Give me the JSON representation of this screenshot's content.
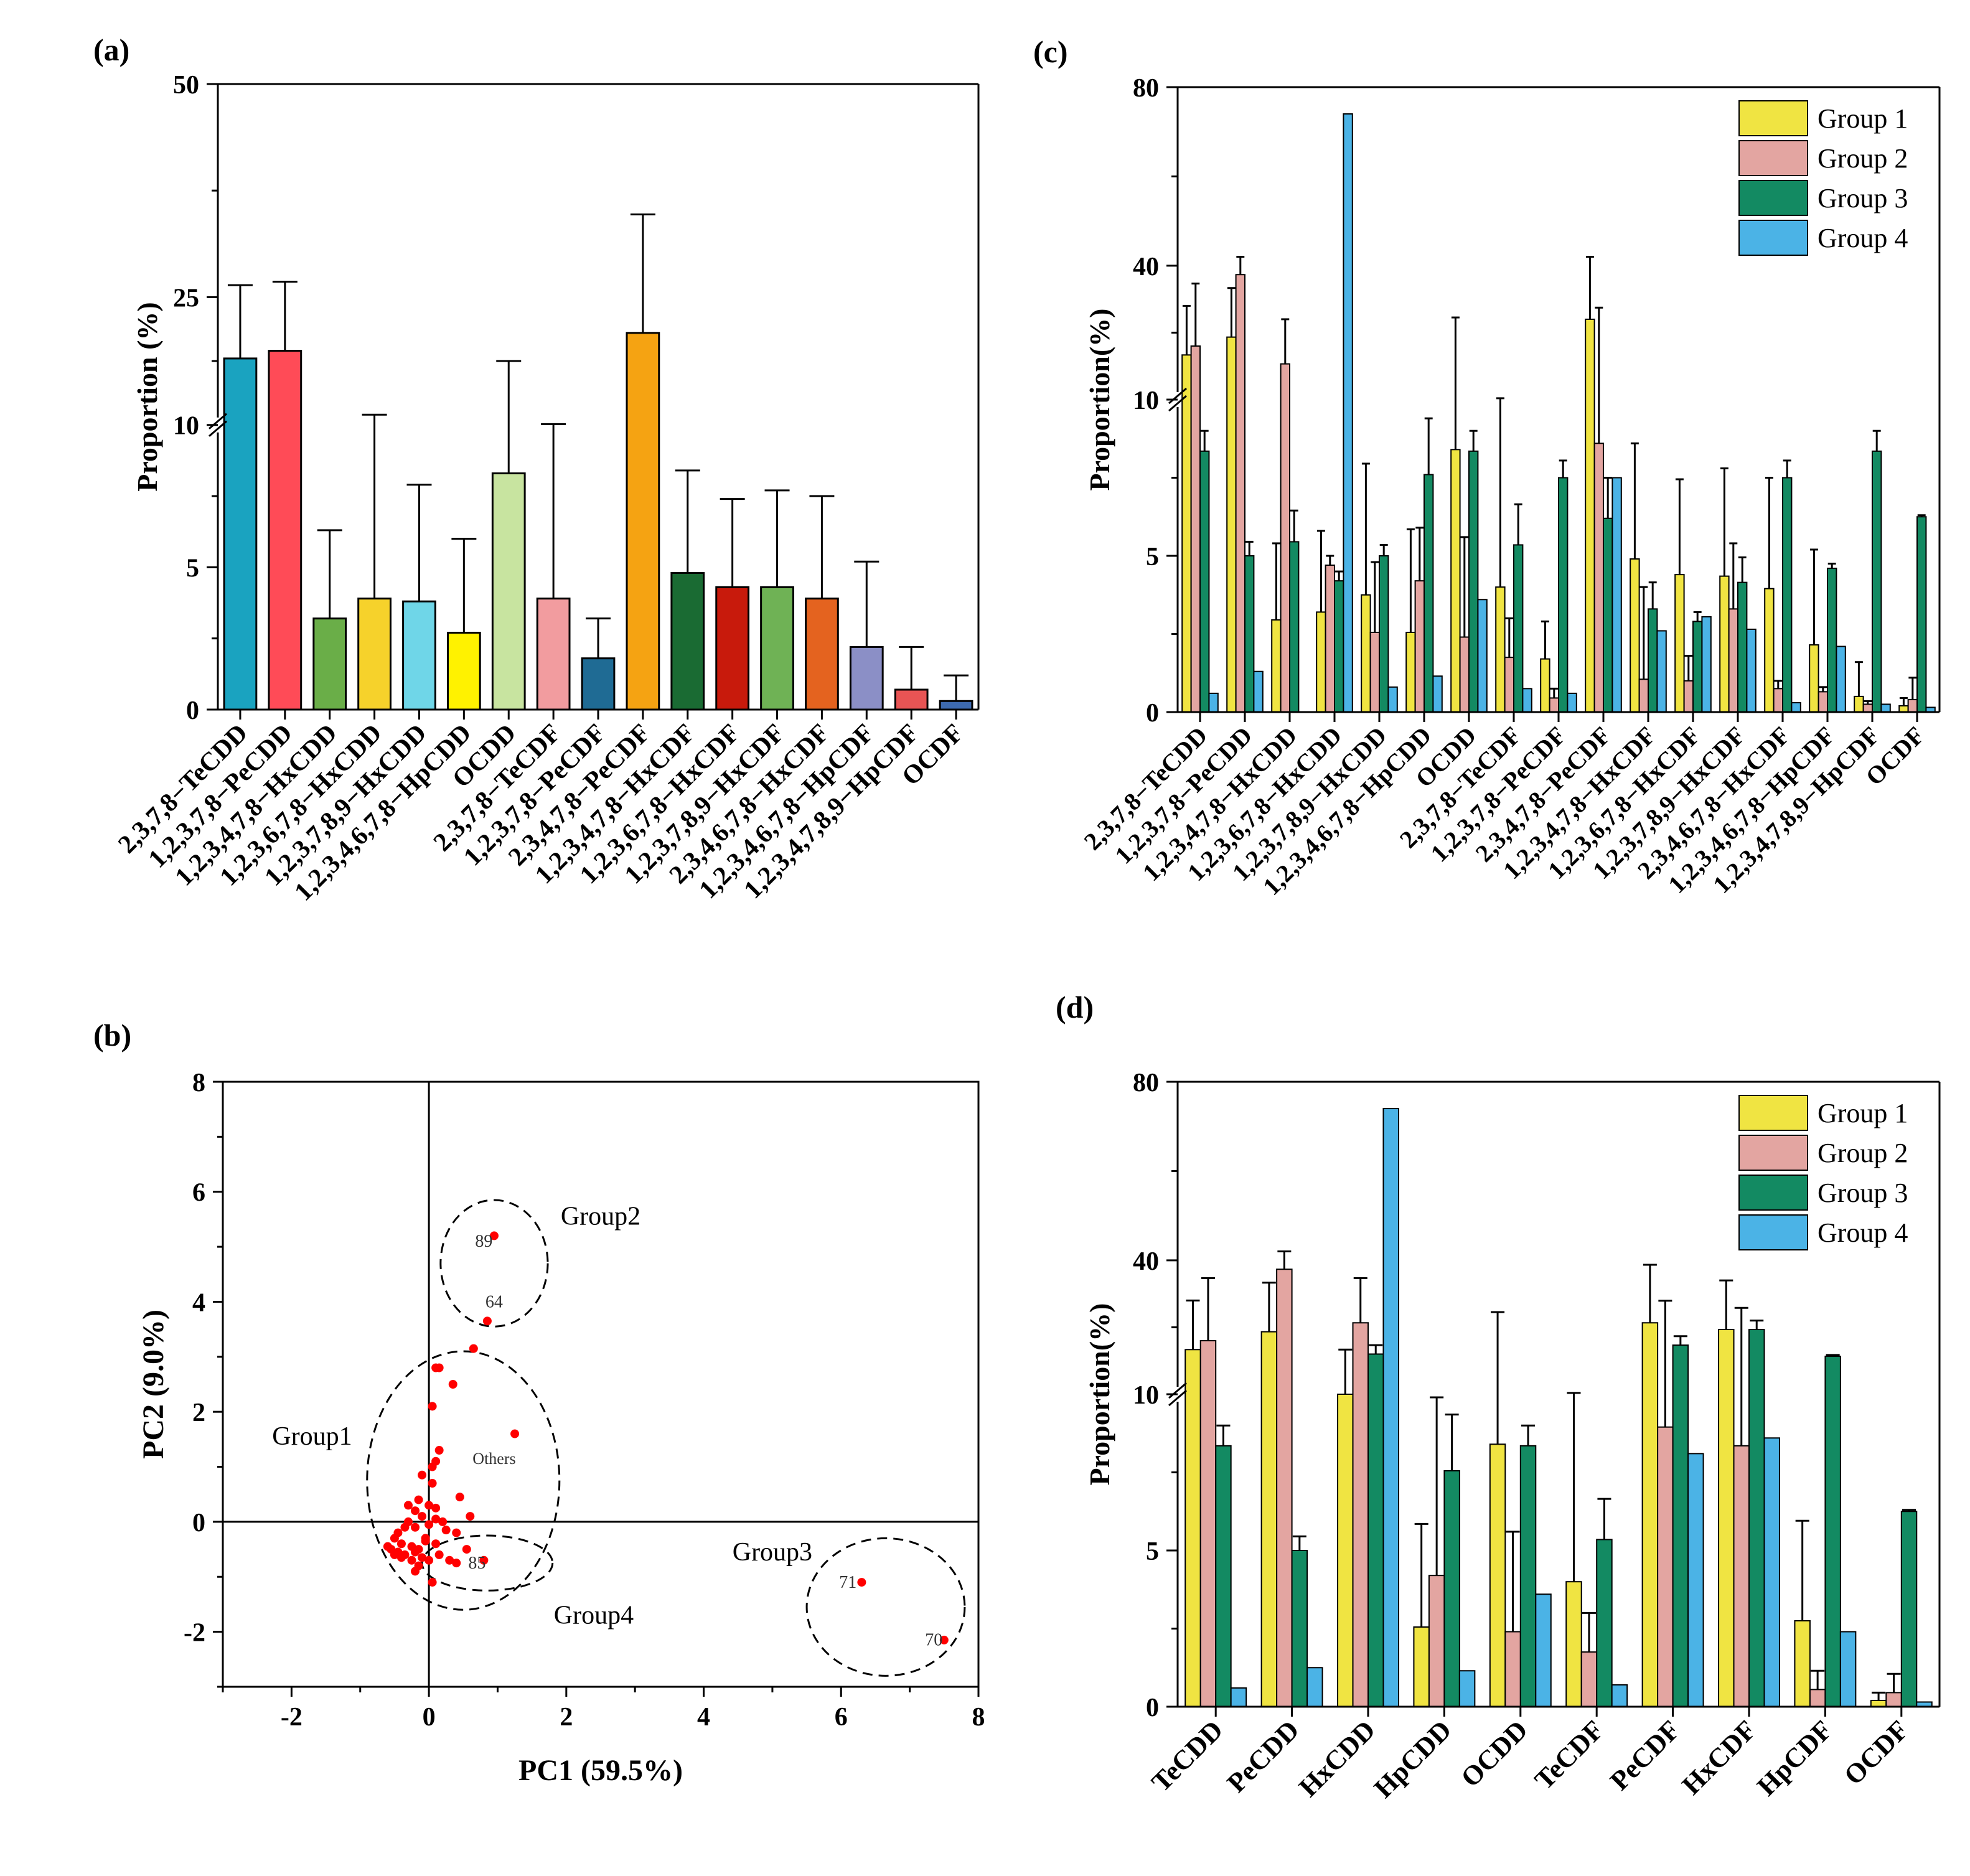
{
  "chart_data": [
    {
      "panel": "(a)",
      "type": "bar",
      "ylabel": "Proportion (%)",
      "y_break": {
        "lower_range": [
          0,
          10
        ],
        "upper_range": [
          10,
          50
        ]
      },
      "yticks": [
        0,
        5,
        10,
        25,
        50
      ],
      "categories": [
        "2,3,7,8−TeCDD",
        "1,2,3,7,8−PeCDD",
        "1,2,3,4,7,8−HxCDD",
        "1,2,3,6,7,8−HxCDD",
        "1,2,3,7,8,9−HxCDD",
        "1,2,3,4,6,7,8−HpCDD",
        "OCDD",
        "2,3,7,8−TeCDF",
        "1,2,3,7,8−PeCDF",
        "2,3,4,7,8−PeCDF",
        "1,2,3,4,7,8−HxCDF",
        "1,2,3,6,7,8−HxCDF",
        "1,2,3,7,8,9−HxCDF",
        "2,3,4,6,7,8−HxCDF",
        "1,2,3,4,6,7,8−HpCDF",
        "1,2,3,4,7,8,9−HpCDF",
        "OCDF"
      ],
      "values": [
        17.8,
        18.7,
        3.2,
        3.9,
        3.8,
        2.7,
        8.3,
        3.9,
        1.8,
        20.8,
        4.8,
        4.3,
        4.3,
        3.9,
        2.2,
        0.7,
        0.3
      ],
      "errors": [
        8.6,
        8.1,
        3.1,
        7.3,
        4.1,
        3.3,
        9.2,
        6.2,
        1.4,
        13.9,
        3.6,
        3.1,
        3.4,
        3.6,
        3.0,
        1.5,
        0.9
      ],
      "colors": [
        "#1aa3c0",
        "#ff4b57",
        "#6aae48",
        "#f6d22b",
        "#6fd6e8",
        "#fff200",
        "#c8e4a0",
        "#f29c9f",
        "#1f6b94",
        "#f5a312",
        "#1a6b33",
        "#c81a0c",
        "#6fb255",
        "#e4631f",
        "#8b8fc6",
        "#e85454",
        "#3d6ab0"
      ]
    },
    {
      "panel": "(c)",
      "type": "bar",
      "ylabel": "Proportion(%)",
      "y_break": {
        "lower_range": [
          0,
          10
        ],
        "upper_range": [
          10,
          80
        ]
      },
      "yticks": [
        0,
        5,
        10,
        40,
        80
      ],
      "categories": [
        "2,3,7,8−TeCDD",
        "1,2,3,7,8−PeCDD",
        "1,2,3,4,7,8−HxCDD",
        "1,2,3,6,7,8−HxCDD",
        "1,2,3,7,8,9−HxCDD",
        "1,2,3,4,6,7,8−HpCDD",
        "OCDD",
        "2,3,7,8−TeCDF",
        "1,2,3,7,8−PeCDF",
        "2,3,4,7,8−PeCDF",
        "1,2,3,4,7,8−HxCDF",
        "1,2,3,6,7,8−HxCDF",
        "1,2,3,7,8,9−HxCDF",
        "2,3,4,6,7,8−HxCDF",
        "1,2,3,4,6,7,8−HpCDF",
        "1,2,3,4,7,8,9−HpCDF",
        "OCDF"
      ],
      "legend_position": "top-right",
      "series": [
        {
          "name": "Group 1",
          "color": "#f0e442",
          "values": [
            20.0,
            24.0,
            2.95,
            3.2,
            3.75,
            2.55,
            8.4,
            4.0,
            1.7,
            28.0,
            4.9,
            4.4,
            4.35,
            3.95,
            2.15,
            0.5,
            0.2
          ],
          "errors": [
            11.0,
            11.0,
            2.45,
            2.6,
            4.2,
            3.3,
            20.0,
            6.3,
            1.2,
            14.0,
            3.7,
            3.05,
            3.45,
            3.55,
            3.05,
            1.1,
            0.25
          ]
        },
        {
          "name": "Group 2",
          "color": "#e3a5a1",
          "values": [
            22.0,
            38.0,
            18.0,
            4.7,
            2.55,
            4.2,
            2.4,
            1.75,
            0.45,
            8.6,
            1.05,
            1.0,
            3.3,
            0.75,
            0.65,
            0.25,
            0.4
          ],
          "errors": [
            14.0,
            4.0,
            10.0,
            0.3,
            2.25,
            1.7,
            3.2,
            1.25,
            0.3,
            22.0,
            2.95,
            0.8,
            2.1,
            0.25,
            0.15,
            0.1,
            0.7
          ]
        },
        {
          "name": "Group 3",
          "color": "#138a62",
          "values": [
            8.35,
            5.0,
            5.45,
            4.2,
            5.0,
            7.6,
            8.35,
            5.35,
            7.5,
            6.2,
            3.3,
            2.9,
            4.15,
            7.5,
            4.6,
            8.35,
            6.25
          ]
        },
        {
          "name": "Group 4",
          "color": "#4bb3e6",
          "values": [
            0.6,
            1.3,
            0.0,
            74.0,
            0.8,
            1.15,
            3.6,
            0.75,
            0.6,
            7.5,
            2.6,
            3.05,
            2.65,
            0.3,
            2.1,
            0.25,
            0.15
          ]
        }
      ],
      "group3_errors": [
        0.65,
        0.45,
        1.0,
        0.3,
        0.35,
        1.8,
        0.65,
        1.3,
        0.55,
        1.3,
        0.85,
        0.3,
        0.8,
        0.55,
        0.15,
        0.65,
        0.05
      ]
    },
    {
      "panel": "(b)",
      "type": "scatter",
      "xlabel": "PC1 (59.5%)",
      "ylabel": "PC2 (9.0%)",
      "xlim": [
        -3,
        8
      ],
      "ylim": [
        -3,
        8
      ],
      "xticks": [
        -2,
        0,
        2,
        4,
        6,
        8
      ],
      "yticks": [
        -2,
        0,
        2,
        4,
        6,
        8
      ],
      "point_color": "#ff0000",
      "points": [
        [
          0.95,
          5.2
        ],
        [
          0.85,
          3.65
        ],
        [
          0.65,
          3.15
        ],
        [
          0.1,
          2.8
        ],
        [
          0.15,
          2.8
        ],
        [
          0.35,
          2.5
        ],
        [
          0.05,
          2.1
        ],
        [
          1.25,
          1.6
        ],
        [
          0.15,
          1.3
        ],
        [
          0.1,
          1.1
        ],
        [
          0.05,
          1.0
        ],
        [
          -0.1,
          0.85
        ],
        [
          0.05,
          0.7
        ],
        [
          -0.15,
          0.4
        ],
        [
          -0.3,
          0.3
        ],
        [
          -0.2,
          0.2
        ],
        [
          0.0,
          0.3
        ],
        [
          0.1,
          0.25
        ],
        [
          0.45,
          0.45
        ],
        [
          -0.1,
          0.1
        ],
        [
          -0.3,
          0.0
        ],
        [
          -0.35,
          -0.1
        ],
        [
          -0.2,
          -0.1
        ],
        [
          0.0,
          -0.05
        ],
        [
          0.2,
          0.0
        ],
        [
          0.4,
          -0.2
        ],
        [
          -0.5,
          -0.3
        ],
        [
          -0.4,
          -0.4
        ],
        [
          -0.25,
          -0.45
        ],
        [
          -0.15,
          -0.5
        ],
        [
          -0.05,
          -0.35
        ],
        [
          0.1,
          -0.4
        ],
        [
          -0.55,
          -0.5
        ],
        [
          -0.45,
          -0.55
        ],
        [
          -0.35,
          -0.6
        ],
        [
          -0.2,
          -0.55
        ],
        [
          -0.1,
          -0.65
        ],
        [
          0.0,
          -0.7
        ],
        [
          0.15,
          -0.6
        ],
        [
          0.3,
          -0.7
        ],
        [
          0.4,
          -0.75
        ],
        [
          -0.6,
          -0.45
        ],
        [
          -0.5,
          -0.6
        ],
        [
          -0.4,
          -0.65
        ],
        [
          -0.25,
          -0.7
        ],
        [
          -0.15,
          -0.8
        ],
        [
          -0.2,
          -0.9
        ],
        [
          0.05,
          -1.1
        ],
        [
          0.8,
          -0.7
        ],
        [
          0.55,
          -0.5
        ],
        [
          0.6,
          0.1
        ],
        [
          -0.05,
          -0.3
        ],
        [
          0.25,
          -0.15
        ],
        [
          -0.45,
          -0.2
        ],
        [
          0.1,
          0.05
        ],
        [
          6.3,
          -1.1
        ],
        [
          7.5,
          -2.15
        ]
      ],
      "point_labels": [
        {
          "text": "89",
          "x": 0.8,
          "y": 5.0
        },
        {
          "text": "64",
          "x": 0.95,
          "y": 3.9
        },
        {
          "text": "Others",
          "x": 0.95,
          "y": 1.05
        },
        {
          "text": "85",
          "x": 0.7,
          "y": -0.85
        },
        {
          "text": "71",
          "x": 6.1,
          "y": -1.2
        },
        {
          "text": "70",
          "x": 7.35,
          "y": -2.25
        }
      ],
      "group_labels": [
        {
          "text": "Group2",
          "x": 2.5,
          "y": 5.4
        },
        {
          "text": "Group1",
          "x": -1.7,
          "y": 1.4
        },
        {
          "text": "Group3",
          "x": 5.0,
          "y": -0.7
        },
        {
          "text": "Group4",
          "x": 2.4,
          "y": -1.85
        }
      ],
      "ellipses": [
        {
          "cx": 0.95,
          "cy": 4.7,
          "rx": 0.78,
          "ry": 1.15
        },
        {
          "cx": 0.5,
          "cy": 0.75,
          "rx": 1.4,
          "ry": 2.35
        },
        {
          "cx": 0.85,
          "cy": -0.75,
          "rx": 0.95,
          "ry": 0.5
        },
        {
          "cx": 6.65,
          "cy": -1.55,
          "rx": 1.15,
          "ry": 1.25
        }
      ]
    },
    {
      "panel": "(d)",
      "type": "bar",
      "ylabel": "Proportion(%)",
      "y_break": {
        "lower_range": [
          0,
          10
        ],
        "upper_range": [
          10,
          80
        ]
      },
      "yticks": [
        0,
        5,
        10,
        40,
        80
      ],
      "categories": [
        "TeCDD",
        "PeCDD",
        "HxCDD",
        "HpCDD",
        "OCDD",
        "TeCDF",
        "PeCDF",
        "HxCDF",
        "HpCDF",
        "OCDF"
      ],
      "legend_position": "top-right",
      "series": [
        {
          "name": "Group 1",
          "color": "#f0e442",
          "values": [
            20.0,
            24.0,
            10.0,
            2.55,
            8.4,
            4.0,
            26.0,
            24.5,
            2.75,
            0.2
          ],
          "errors": [
            11.0,
            11.0,
            10.0,
            3.3,
            20.0,
            6.3,
            13.0,
            11.0,
            3.2,
            0.25
          ]
        },
        {
          "name": "Group 2",
          "color": "#e3a5a1",
          "values": [
            22.0,
            38.0,
            26.0,
            4.2,
            2.4,
            1.75,
            8.95,
            8.35,
            0.55,
            0.45
          ],
          "errors": [
            14.0,
            4.0,
            10.0,
            5.7,
            3.2,
            1.25,
            22.0,
            21.0,
            0.6,
            0.6
          ]
        },
        {
          "name": "Group 3",
          "color": "#138a62",
          "values": [
            8.35,
            5.0,
            19.0,
            7.55,
            8.35,
            5.35,
            21.0,
            24.5,
            18.5,
            6.25
          ]
        },
        {
          "name": "Group 4",
          "color": "#4bb3e6",
          "values": [
            0.6,
            1.25,
            74.0,
            1.15,
            3.6,
            0.7,
            8.1,
            8.6,
            2.4,
            0.15
          ]
        }
      ],
      "group3_errors": [
        0.65,
        0.45,
        2.0,
        1.8,
        0.65,
        1.3,
        2.0,
        2.0,
        0.3,
        0.05
      ]
    }
  ],
  "panel_labels": {
    "a": "(a)",
    "b": "(b)",
    "c": "(c)",
    "d": "(d)"
  }
}
